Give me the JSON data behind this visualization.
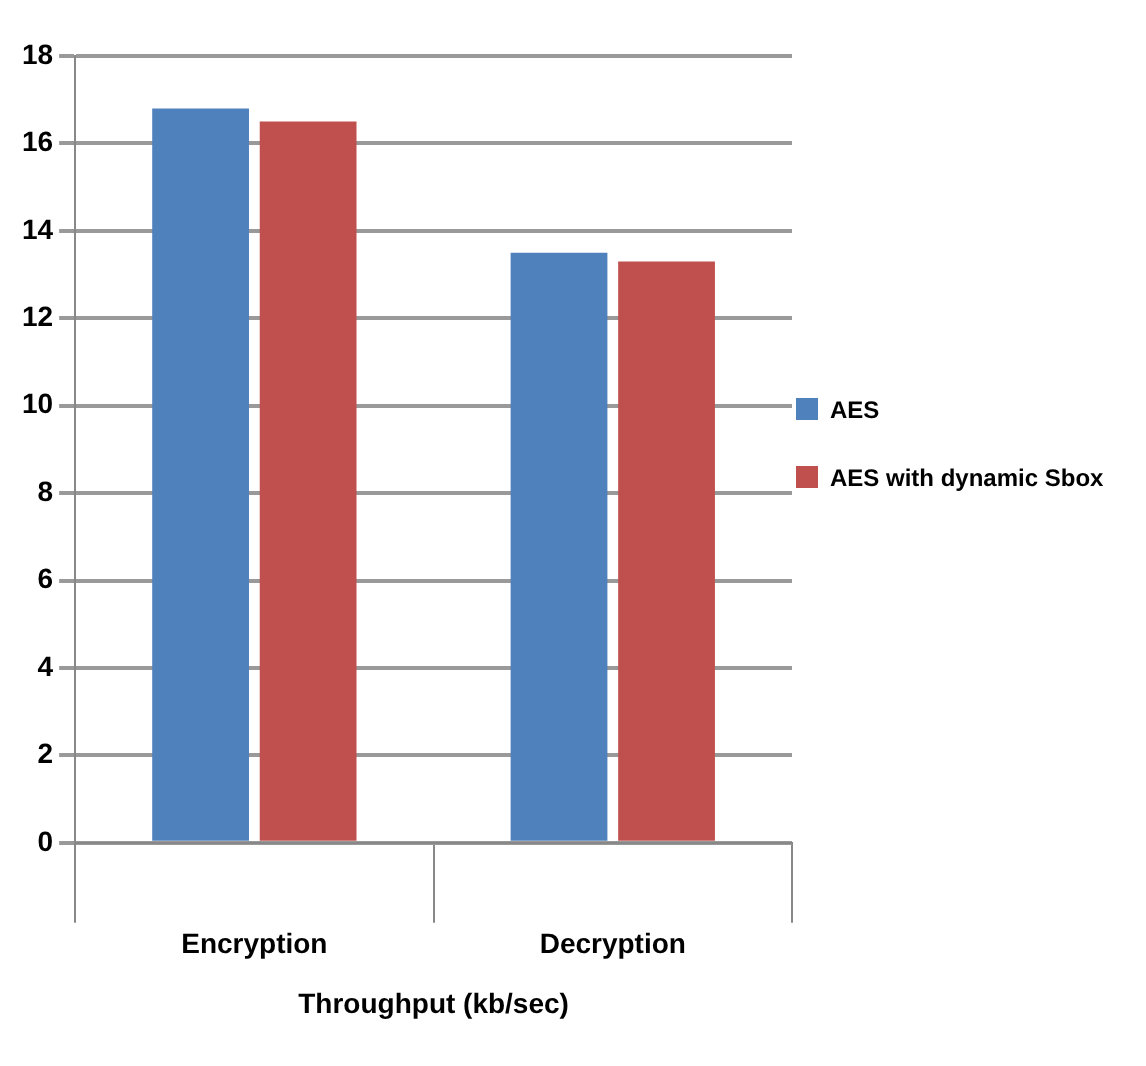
{
  "chart_data": {
    "type": "bar",
    "xlabel": "Throughput (kb/sec)",
    "categories": [
      "Encryption",
      "Decryption"
    ],
    "series": [
      {
        "name": "AES",
        "color": "#4f81bd",
        "values": [
          16.8,
          13.5
        ]
      },
      {
        "name": "AES with dynamic Sbox",
        "color": "#c0504d",
        "values": [
          16.5,
          13.3
        ]
      }
    ],
    "ylim": [
      0,
      18
    ],
    "yticks": [
      0,
      2,
      4,
      6,
      8,
      10,
      12,
      14,
      16,
      18
    ],
    "grid": "y",
    "legend": "right"
  }
}
